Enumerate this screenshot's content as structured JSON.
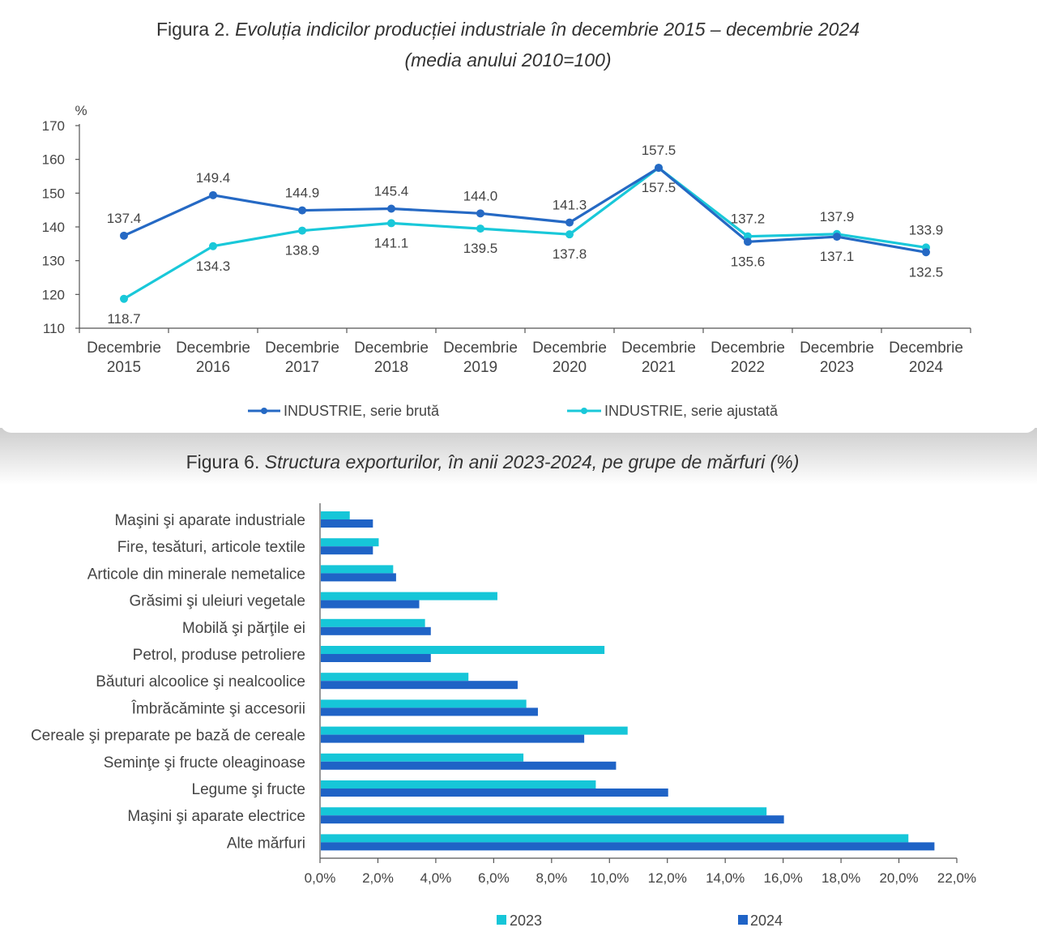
{
  "figure2": {
    "title_prefix": "Figura 2.",
    "title_italic": "Evoluția indicilor producției industriale în decembrie 2015 – decembrie 2024",
    "subtitle": "(media anului 2010=100)",
    "chart_data": {
      "type": "line",
      "ylabel": "%",
      "ylim": [
        110,
        170
      ],
      "yticks": [
        110,
        120,
        130,
        140,
        150,
        160,
        170
      ],
      "categories": [
        [
          "Decembrie",
          "2015"
        ],
        [
          "Decembrie",
          "2016"
        ],
        [
          "Decembrie",
          "2017"
        ],
        [
          "Decembrie",
          "2018"
        ],
        [
          "Decembrie",
          "2019"
        ],
        [
          "Decembrie",
          "2020"
        ],
        [
          "Decembrie",
          "2021"
        ],
        [
          "Decembrie",
          "2022"
        ],
        [
          "Decembrie",
          "2023"
        ],
        [
          "Decembrie",
          "2024"
        ]
      ],
      "series": [
        {
          "name": "INDUSTRIE, serie brută",
          "color": "#2569c4",
          "values": [
            137.4,
            149.4,
            144.9,
            145.4,
            144.0,
            141.3,
            157.5,
            135.6,
            137.1,
            132.5
          ],
          "labels": [
            "137.4",
            "149.4",
            "144.9",
            "145.4",
            "144.0",
            "141.3",
            "157.5",
            "135.6",
            "137.1",
            "132.5"
          ]
        },
        {
          "name": "INDUSTRIE, serie ajustată",
          "color": "#19c8d9",
          "values": [
            118.7,
            134.3,
            138.9,
            141.1,
            139.5,
            137.8,
            157.5,
            137.2,
            137.9,
            133.9
          ],
          "labels": [
            "118.7",
            "134.3",
            "138.9",
            "141.1",
            "139.5",
            "137.8",
            "157.5",
            "137.2",
            "137.9",
            "133.9"
          ]
        }
      ],
      "legend_position": "bottom"
    }
  },
  "figure6": {
    "title_prefix": "Figura 6.",
    "title_italic": "Structura exporturilor, în anii 2023-2024, pe grupe de mărfuri (%)",
    "chart_data": {
      "type": "bar",
      "orientation": "horizontal",
      "categories": [
        "Maşini şi aparate industriale",
        "Fire, tesături, articole textile",
        "Articole din minerale nemetalice",
        "Grăsimi şi uleiuri vegetale",
        "Mobilă şi părţile ei",
        "Petrol, produse petroliere",
        "Băuturi alcoolice şi nealcoolice",
        "Îmbrăcăminte şi accesorii",
        "Cereale şi preparate pe bază de cereale",
        "Seminţe şi fructe oleaginoase",
        "Legume şi fructe",
        "Maşini şi aparate electrice",
        "Alte mărfuri"
      ],
      "series": [
        {
          "name": "2023",
          "color": "#16c6d8",
          "values": [
            1.0,
            2.0,
            2.5,
            6.1,
            3.6,
            9.8,
            5.1,
            7.1,
            10.6,
            7.0,
            9.5,
            15.4,
            20.3
          ]
        },
        {
          "name": "2024",
          "color": "#1f63c6",
          "values": [
            1.8,
            1.8,
            2.6,
            3.4,
            3.8,
            3.8,
            6.8,
            7.5,
            9.1,
            10.2,
            12.0,
            16.0,
            21.2
          ]
        }
      ],
      "xlim": [
        0,
        22
      ],
      "xticks": [
        "0,0%",
        "2,0%",
        "4,0%",
        "6,0%",
        "8,0%",
        "10,0%",
        "12,0%",
        "14,0%",
        "16,0%",
        "18,0%",
        "20,0%",
        "22,0%"
      ],
      "legend_position": "bottom"
    }
  }
}
